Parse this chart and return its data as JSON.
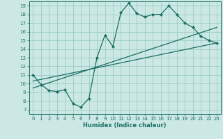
{
  "xlabel": "Humidex (Indice chaleur)",
  "ylabel": "",
  "bg_color": "#cce8e4",
  "grid_color": "#99ccc4",
  "line_color": "#1a6e64",
  "xlim": [
    -0.5,
    23.5
  ],
  "ylim": [
    6.5,
    19.5
  ],
  "xticks": [
    0,
    1,
    2,
    3,
    4,
    5,
    6,
    7,
    8,
    9,
    10,
    11,
    12,
    13,
    14,
    15,
    16,
    17,
    18,
    19,
    20,
    21,
    22,
    23
  ],
  "yticks": [
    7,
    8,
    9,
    10,
    11,
    12,
    13,
    14,
    15,
    16,
    17,
    18,
    19
  ],
  "curve1_x": [
    0,
    1,
    2,
    3,
    4,
    5,
    6,
    7,
    8,
    9,
    10,
    11,
    12,
    13,
    14,
    15,
    16,
    17,
    18,
    19,
    20,
    21,
    22,
    23
  ],
  "curve1_y": [
    11,
    9.9,
    9.2,
    9.1,
    9.3,
    7.7,
    7.3,
    8.3,
    13.0,
    15.6,
    14.3,
    18.2,
    19.3,
    18.1,
    17.7,
    18.0,
    18.0,
    19.0,
    18.0,
    17.0,
    16.5,
    15.5,
    15.0,
    14.7
  ],
  "line2_x": [
    0,
    23
  ],
  "line2_y": [
    9.5,
    16.5
  ],
  "line3_x": [
    0,
    23
  ],
  "line3_y": [
    10.3,
    14.7
  ]
}
